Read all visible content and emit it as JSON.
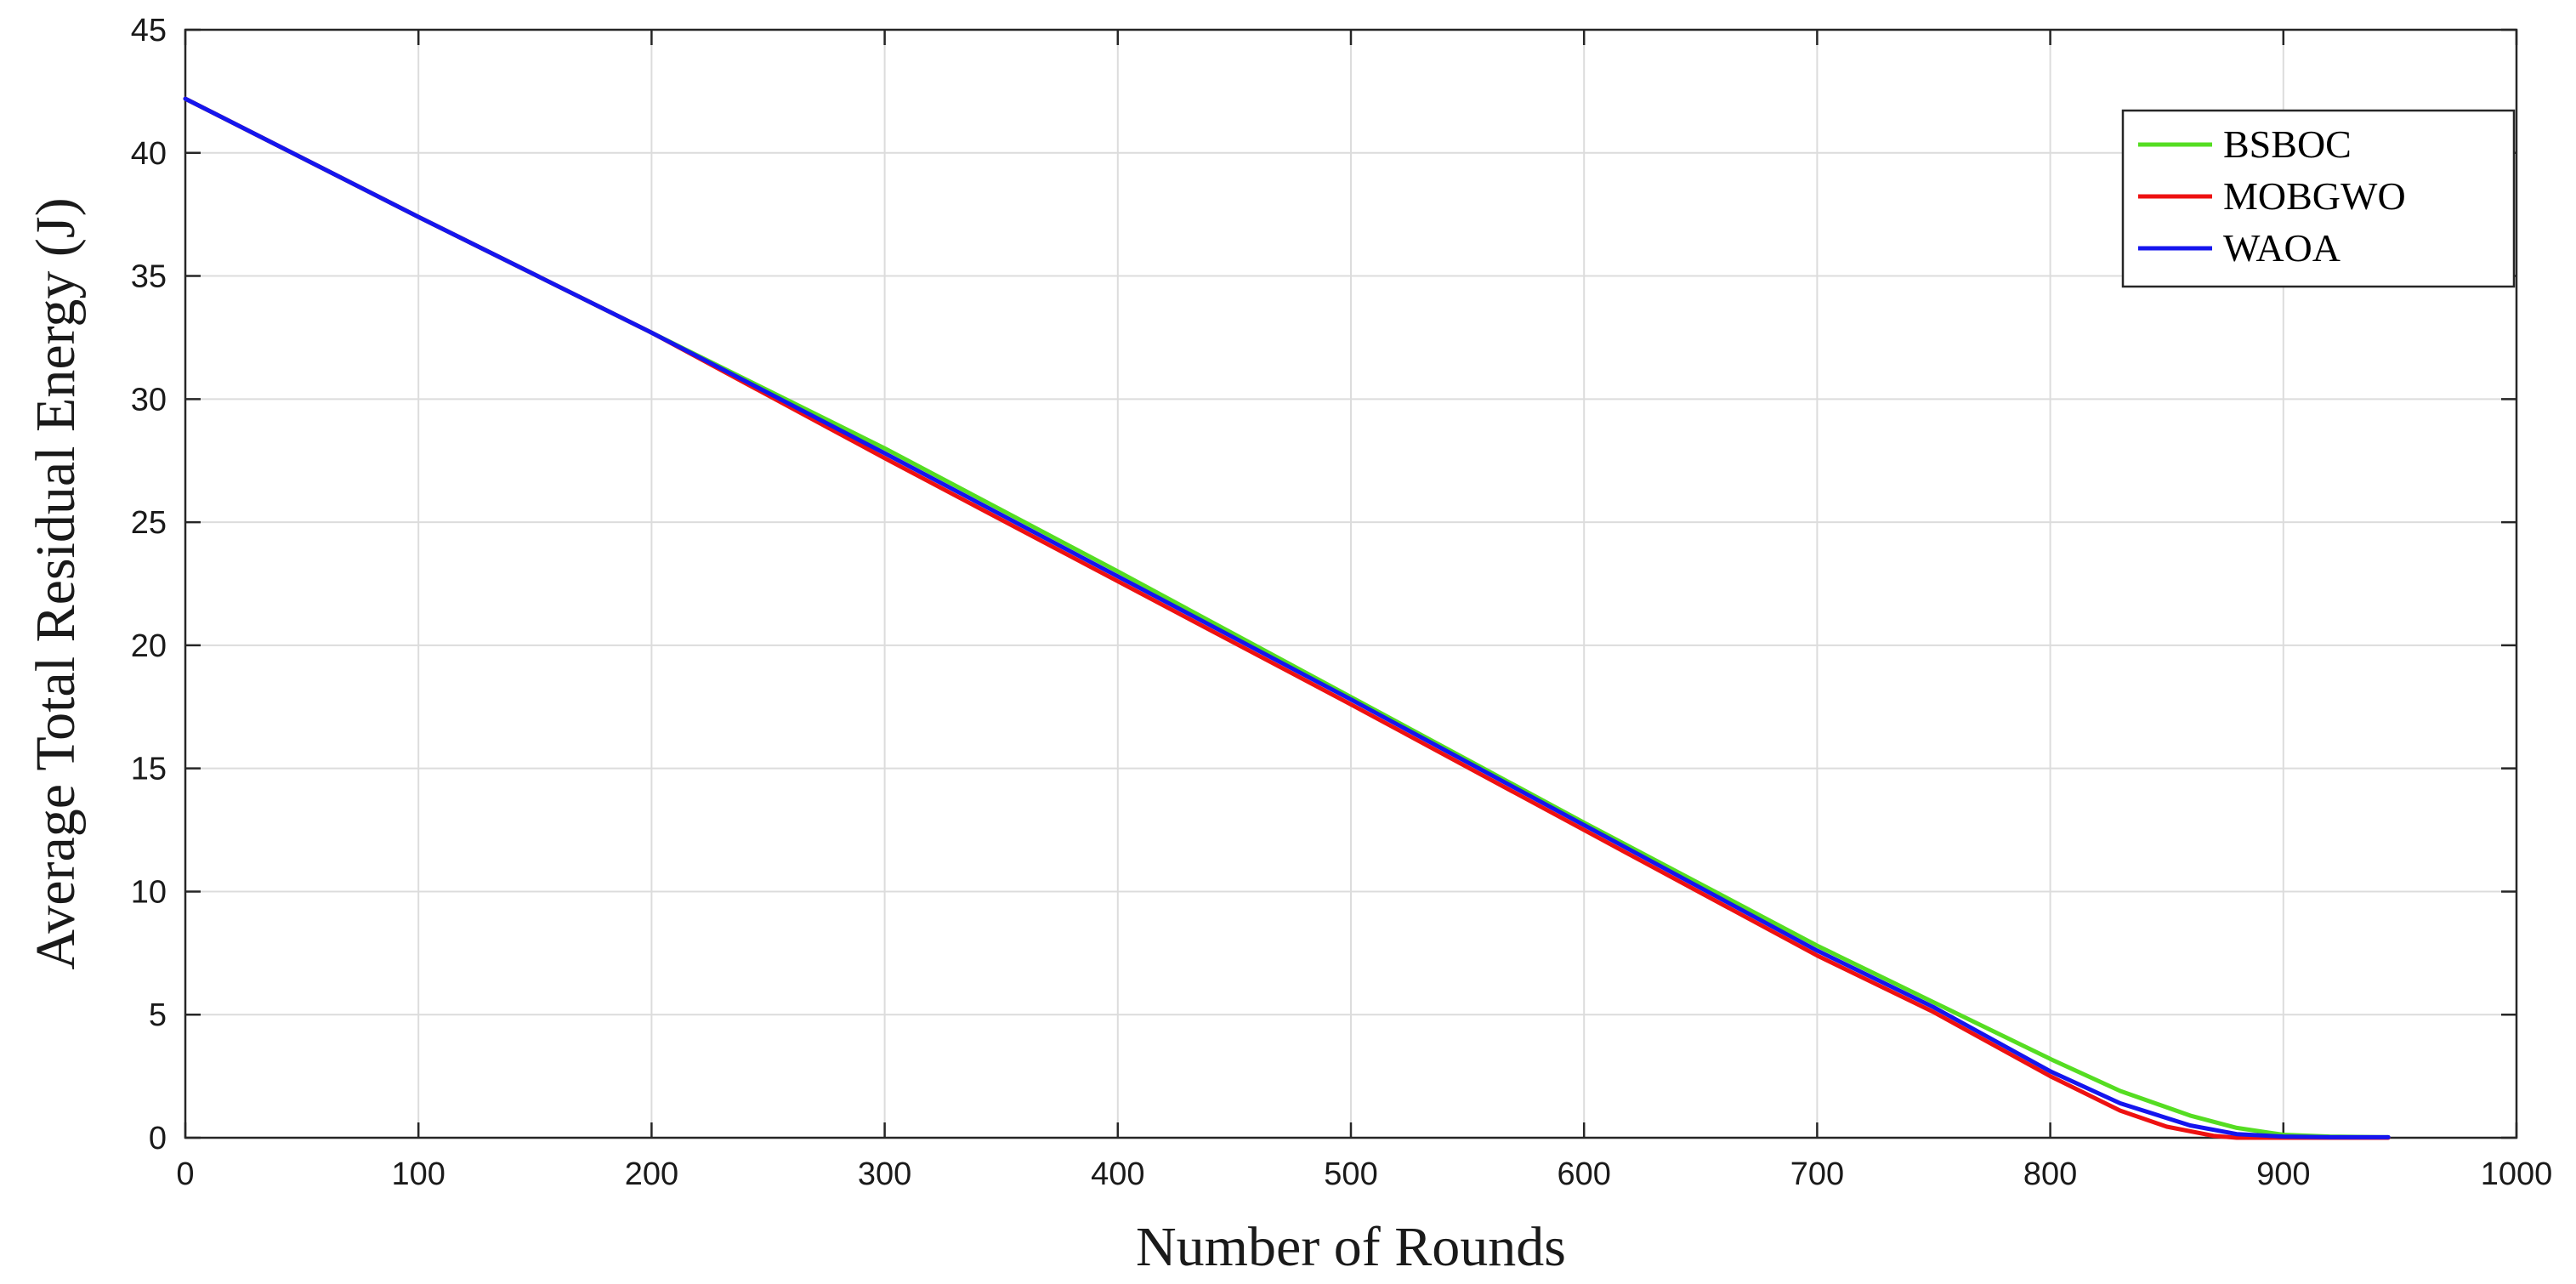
{
  "chart_data": {
    "type": "line",
    "title": "",
    "xlabel": "Number of Rounds",
    "ylabel": "Average Total Residual Energy (J)",
    "xlim": [
      0,
      1000
    ],
    "ylim": [
      0,
      45
    ],
    "xticks": [
      0,
      100,
      200,
      300,
      400,
      500,
      600,
      700,
      800,
      900,
      1000
    ],
    "yticks": [
      0,
      5,
      10,
      15,
      20,
      25,
      30,
      35,
      40,
      45
    ],
    "grid": true,
    "legend_position": "top-right",
    "series": [
      {
        "name": "BSBOC",
        "color": "#55dd22",
        "x": [
          0,
          100,
          200,
          300,
          400,
          500,
          600,
          700,
          750,
          800,
          830,
          860,
          880,
          900,
          920,
          945
        ],
        "y": [
          42.2,
          37.4,
          32.7,
          28.0,
          23.0,
          17.9,
          12.8,
          7.8,
          5.5,
          3.2,
          1.9,
          0.9,
          0.4,
          0.12,
          0.05,
          0.02
        ]
      },
      {
        "name": "MOBGWO",
        "color": "#ee1111",
        "x": [
          0,
          100,
          200,
          300,
          400,
          500,
          600,
          700,
          750,
          800,
          830,
          850,
          870,
          880,
          900,
          945
        ],
        "y": [
          42.2,
          37.4,
          32.7,
          27.6,
          22.6,
          17.6,
          12.5,
          7.4,
          5.1,
          2.5,
          1.1,
          0.45,
          0.08,
          0.0,
          0.0,
          0.0
        ]
      },
      {
        "name": "WAOA",
        "color": "#1515ee",
        "x": [
          0,
          100,
          200,
          300,
          400,
          500,
          600,
          700,
          750,
          800,
          830,
          860,
          880,
          900,
          920,
          945
        ],
        "y": [
          42.2,
          37.4,
          32.7,
          27.8,
          22.8,
          17.8,
          12.7,
          7.6,
          5.3,
          2.7,
          1.4,
          0.5,
          0.15,
          0.05,
          0.02,
          0.02
        ]
      }
    ]
  }
}
